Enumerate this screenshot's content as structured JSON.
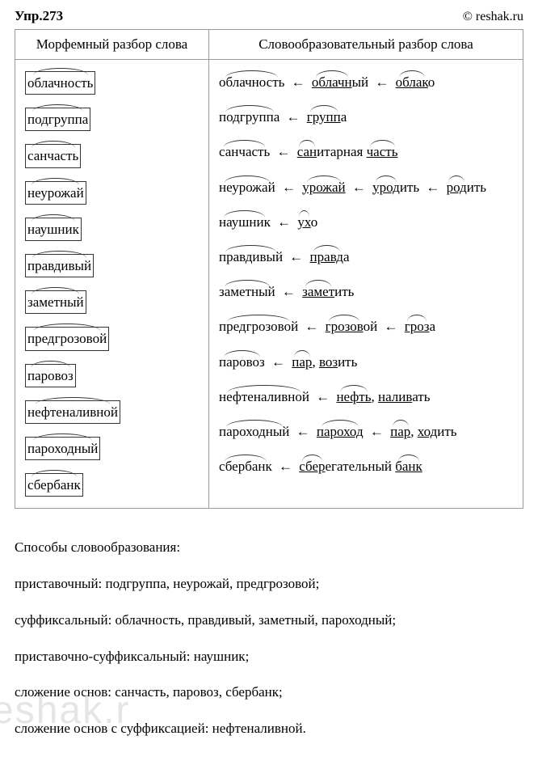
{
  "exercise_title": "Упр.273",
  "source": "© reshak.ru",
  "watermark": "eshak.r",
  "table": {
    "header_left": "Морфемный разбор слова",
    "header_right": "Словообразовательный разбор слова",
    "rows": [
      {
        "left": "облачность",
        "right": "облачность ← облачный ← облако"
      },
      {
        "left": "подгруппа",
        "right": "подгруппа ← группа"
      },
      {
        "left": "санчасть",
        "right": "санчасть ← санитарная часть"
      },
      {
        "left": "неурожай",
        "right": "неурожай ← урожай ← уродить ← родить"
      },
      {
        "left": "наушник",
        "right": "наушник ← ухо"
      },
      {
        "left": "правдивый",
        "right": "правдивый ← правда"
      },
      {
        "left": "заметный",
        "right": "заметный ← заметить"
      },
      {
        "left": "предгрозовой",
        "right": "предгрозовой ← грозовой ← гроза"
      },
      {
        "left": "паровоз",
        "right": "паровоз ← пар, возить"
      },
      {
        "left": "нефтеналивной",
        "right": "нефтеналивной ← нефть, наливать"
      },
      {
        "left": "пароходный",
        "right": "пароходный ← пароход ← пар, ходить"
      },
      {
        "left": "сбербанк",
        "right": "сбербанк ← сберегательный банк"
      }
    ]
  },
  "methods": {
    "title": "Способы словообразования:",
    "lines": [
      "приставочный: подгруппа, неурожай, предгрозовой;",
      "суффиксальный: облачность, правдивый, заметный, пароходный;",
      "приставочно-суффиксальный: наушник;",
      "сложение основ: санчасть, паровоз, сбербанк;",
      "сложение основ с суффиксацией: нефтеналивной."
    ]
  }
}
